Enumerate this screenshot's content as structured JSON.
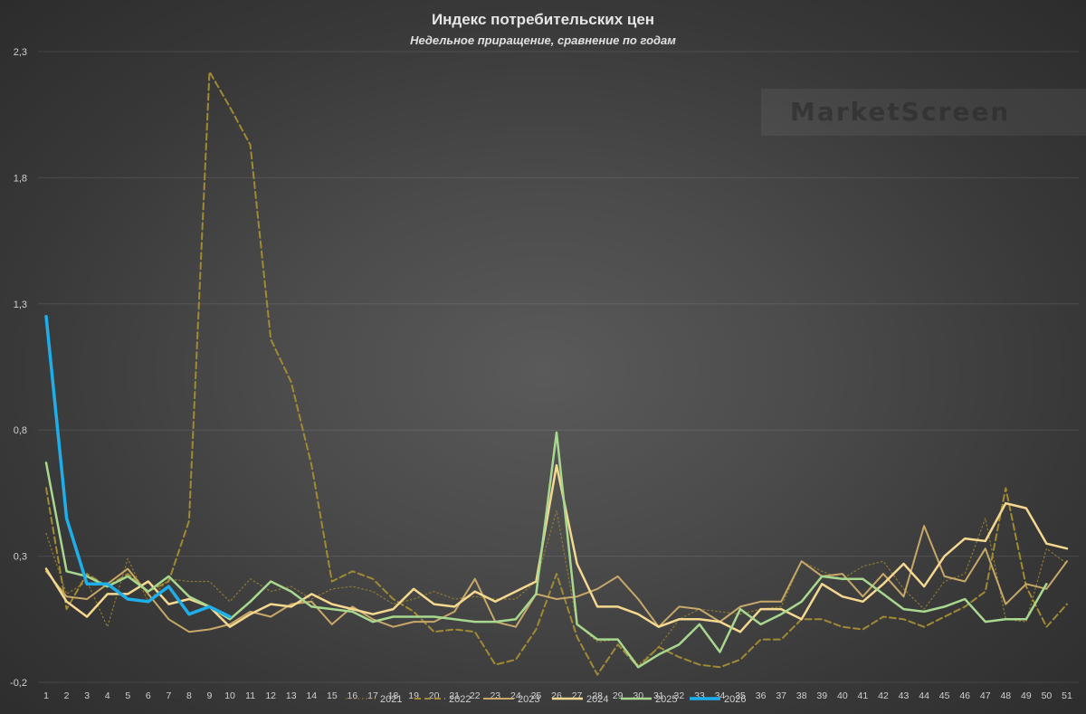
{
  "chart_data": {
    "type": "line",
    "title": "Индекс потребительских цен",
    "subtitle": "Недельное приращение, сравнение по годам",
    "watermark": "MarketScreen",
    "xlabel": "",
    "ylabel": "",
    "ylim": [
      -0.2,
      2.3
    ],
    "yticks": [
      -0.2,
      0.3,
      0.8,
      1.3,
      1.8,
      2.3
    ],
    "ytick_labels": [
      "-0,2",
      "0,3",
      "0,8",
      "1,3",
      "1,8",
      "2,3"
    ],
    "x": [
      1,
      2,
      3,
      4,
      5,
      6,
      7,
      8,
      9,
      10,
      11,
      12,
      13,
      14,
      15,
      16,
      17,
      18,
      19,
      20,
      21,
      22,
      23,
      24,
      25,
      26,
      27,
      28,
      29,
      30,
      31,
      32,
      33,
      34,
      35,
      36,
      37,
      38,
      39,
      40,
      41,
      42,
      43,
      44,
      45,
      46,
      47,
      48,
      49,
      50,
      51
    ],
    "legend_position": "bottom",
    "series": [
      {
        "name": "2021",
        "color": "#8f7a30",
        "style": "dotted",
        "width": 1.2,
        "values": [
          0.39,
          0.15,
          0.2,
          0.02,
          0.29,
          0.12,
          0.21,
          0.2,
          0.2,
          0.12,
          0.21,
          0.16,
          0.18,
          0.13,
          0.17,
          0.18,
          0.16,
          0.11,
          0.13,
          0.16,
          0.13,
          0.14,
          0.13,
          0.13,
          0.2,
          0.48,
          0.03,
          -0.04,
          -0.03,
          -0.13,
          -0.06,
          0.05,
          0.09,
          0.08,
          0.07,
          0.09,
          0.1,
          0.28,
          0.24,
          0.21,
          0.26,
          0.28,
          0.17,
          0.09,
          0.2,
          0.23,
          0.45,
          0.05,
          0.04,
          0.33,
          0.27
        ]
      },
      {
        "name": "2022",
        "color": "#a08a34",
        "style": "dashed",
        "width": 2,
        "values": [
          0.57,
          0.09,
          0.23,
          0.18,
          0.23,
          0.16,
          0.2,
          0.44,
          2.22,
          2.08,
          1.93,
          1.16,
          0.99,
          0.66,
          0.2,
          0.24,
          0.21,
          0.13,
          0.08,
          0.0,
          0.01,
          0.0,
          -0.13,
          -0.11,
          0.01,
          0.23,
          -0.02,
          -0.17,
          -0.05,
          -0.14,
          -0.06,
          -0.1,
          -0.13,
          -0.14,
          -0.11,
          -0.03,
          -0.03,
          0.05,
          0.05,
          0.02,
          0.01,
          0.06,
          0.05,
          0.02,
          0.06,
          0.1,
          0.16,
          0.57,
          0.18,
          0.02,
          0.11
        ]
      },
      {
        "name": "2023",
        "color": "#c8a868",
        "style": "solid",
        "width": 2,
        "values": [
          0.24,
          0.14,
          0.13,
          0.19,
          0.25,
          0.15,
          0.05,
          0.0,
          0.01,
          0.03,
          0.08,
          0.06,
          0.11,
          0.12,
          0.03,
          0.1,
          0.05,
          0.02,
          0.04,
          0.04,
          0.08,
          0.21,
          0.04,
          0.02,
          0.15,
          0.13,
          0.14,
          0.17,
          0.22,
          0.13,
          0.02,
          0.1,
          0.09,
          0.04,
          0.1,
          0.12,
          0.12,
          0.28,
          0.22,
          0.23,
          0.14,
          0.23,
          0.14,
          0.42,
          0.22,
          0.2,
          0.33,
          0.11,
          0.19,
          0.17,
          0.28
        ]
      },
      {
        "name": "2024",
        "color": "#f5d890",
        "style": "solid",
        "width": 2.5,
        "values": [
          0.25,
          0.12,
          0.06,
          0.15,
          0.15,
          0.2,
          0.11,
          0.13,
          0.1,
          0.02,
          0.07,
          0.11,
          0.1,
          0.15,
          0.11,
          0.09,
          0.07,
          0.09,
          0.17,
          0.11,
          0.1,
          0.16,
          0.12,
          0.16,
          0.2,
          0.66,
          0.27,
          0.1,
          0.1,
          0.07,
          0.02,
          0.05,
          0.05,
          0.04,
          0.0,
          0.09,
          0.09,
          0.05,
          0.19,
          0.14,
          0.12,
          0.19,
          0.27,
          0.18,
          0.3,
          0.37,
          0.36,
          0.51,
          0.49,
          0.35,
          0.33
        ]
      },
      {
        "name": "2025",
        "color": "#a8d890",
        "style": "solid",
        "width": 2.5,
        "values": [
          0.67,
          0.24,
          0.22,
          0.18,
          0.22,
          0.16,
          0.22,
          0.14,
          0.1,
          0.05,
          0.12,
          0.2,
          0.16,
          0.1,
          0.09,
          0.08,
          0.04,
          0.06,
          0.06,
          0.06,
          0.05,
          0.04,
          0.04,
          0.05,
          0.15,
          0.79,
          0.03,
          -0.03,
          -0.03,
          -0.14,
          -0.09,
          -0.05,
          0.03,
          -0.08,
          0.09,
          0.03,
          0.07,
          0.12,
          0.22,
          0.21,
          0.21,
          0.15,
          0.09,
          0.08,
          0.1,
          0.13,
          0.04,
          0.05,
          0.05,
          0.19,
          null
        ]
      },
      {
        "name": "2026",
        "color": "#1eaeea",
        "style": "solid",
        "width": 3.5,
        "values": [
          1.25,
          0.45,
          0.19,
          0.19,
          0.13,
          0.12,
          0.18,
          0.07,
          0.1,
          0.06,
          null,
          null,
          null,
          null,
          null,
          null,
          null,
          null,
          null,
          null,
          null,
          null,
          null,
          null,
          null,
          null,
          null,
          null,
          null,
          null,
          null,
          null,
          null,
          null,
          null,
          null,
          null,
          null,
          null,
          null,
          null,
          null,
          null,
          null,
          null,
          null,
          null,
          null,
          null,
          null,
          null
        ]
      }
    ]
  }
}
